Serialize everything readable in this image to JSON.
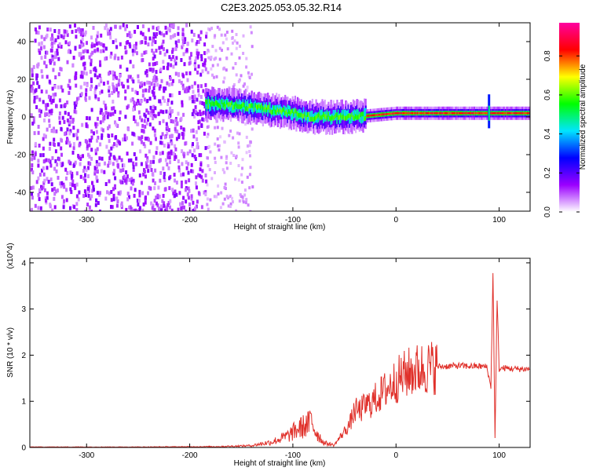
{
  "title": "C2E3.2025.053.05.32.R14",
  "chart_data": [
    {
      "type": "heatmap",
      "xlabel": "Height of straight line (km)",
      "ylabel": "Frequency (Hz)",
      "xlim": [
        -355,
        130
      ],
      "ylim": [
        -50,
        50
      ],
      "xticks": [
        "-300",
        "-200",
        "-100",
        "0",
        "100"
      ],
      "yticks": [
        "-40",
        "-20",
        "0",
        "20",
        "40"
      ],
      "colorbar": {
        "label": "Normalized spectral amplitude",
        "ticks": [
          "0.0",
          "0.2",
          "0.4",
          "0.6",
          "0.8"
        ],
        "range": [
          0,
          0.97
        ],
        "colormap": [
          "#ffffff",
          "#9b00ff",
          "#0000ff",
          "#00e5ff",
          "#00ff00",
          "#ffff00",
          "#ff0000",
          "#ff00a0"
        ]
      },
      "features": {
        "noise_region_x": [
          -355,
          -185
        ],
        "band_center_hz": [
          [
            -185,
            7
          ],
          [
            -150,
            6
          ],
          [
            -100,
            2
          ],
          [
            -80,
            0
          ],
          [
            -40,
            0
          ],
          [
            0,
            2
          ],
          [
            130,
            2
          ]
        ],
        "spike_x": 90
      }
    },
    {
      "type": "line",
      "xlabel": "Height of straight line (km)",
      "ylabel": "SNR (10 * v/v)",
      "y_multiplier": "(x10^4)",
      "xlim": [
        -355,
        130
      ],
      "ylim": [
        0,
        4.1
      ],
      "xticks": [
        "-300",
        "-200",
        "-100",
        "0",
        "100"
      ],
      "yticks": [
        "0",
        "1",
        "2",
        "3",
        "4"
      ],
      "color": "#e0302a",
      "x": [
        -355,
        -300,
        -250,
        -200,
        -170,
        -140,
        -120,
        -105,
        -95,
        -85,
        -82,
        -78,
        -70,
        -60,
        -55,
        -50,
        -45,
        -40,
        -35,
        -30,
        -25,
        -20,
        -15,
        -10,
        -5,
        0,
        10,
        20,
        30,
        40,
        50,
        60,
        70,
        80,
        88,
        92,
        94,
        96,
        98,
        100,
        105,
        110,
        120,
        130
      ],
      "y": [
        0.01,
        0.01,
        0.01,
        0.015,
        0.02,
        0.04,
        0.12,
        0.25,
        0.4,
        0.5,
        0.6,
        0.35,
        0.1,
        0.05,
        0.2,
        0.35,
        0.5,
        0.8,
        0.8,
        0.9,
        0.95,
        1.05,
        1.15,
        1.25,
        1.35,
        1.45,
        1.6,
        1.68,
        1.73,
        1.75,
        1.76,
        1.77,
        1.76,
        1.76,
        1.75,
        1.3,
        3.8,
        0.2,
        3.2,
        1.7,
        1.72,
        1.71,
        1.7,
        1.7
      ]
    }
  ]
}
